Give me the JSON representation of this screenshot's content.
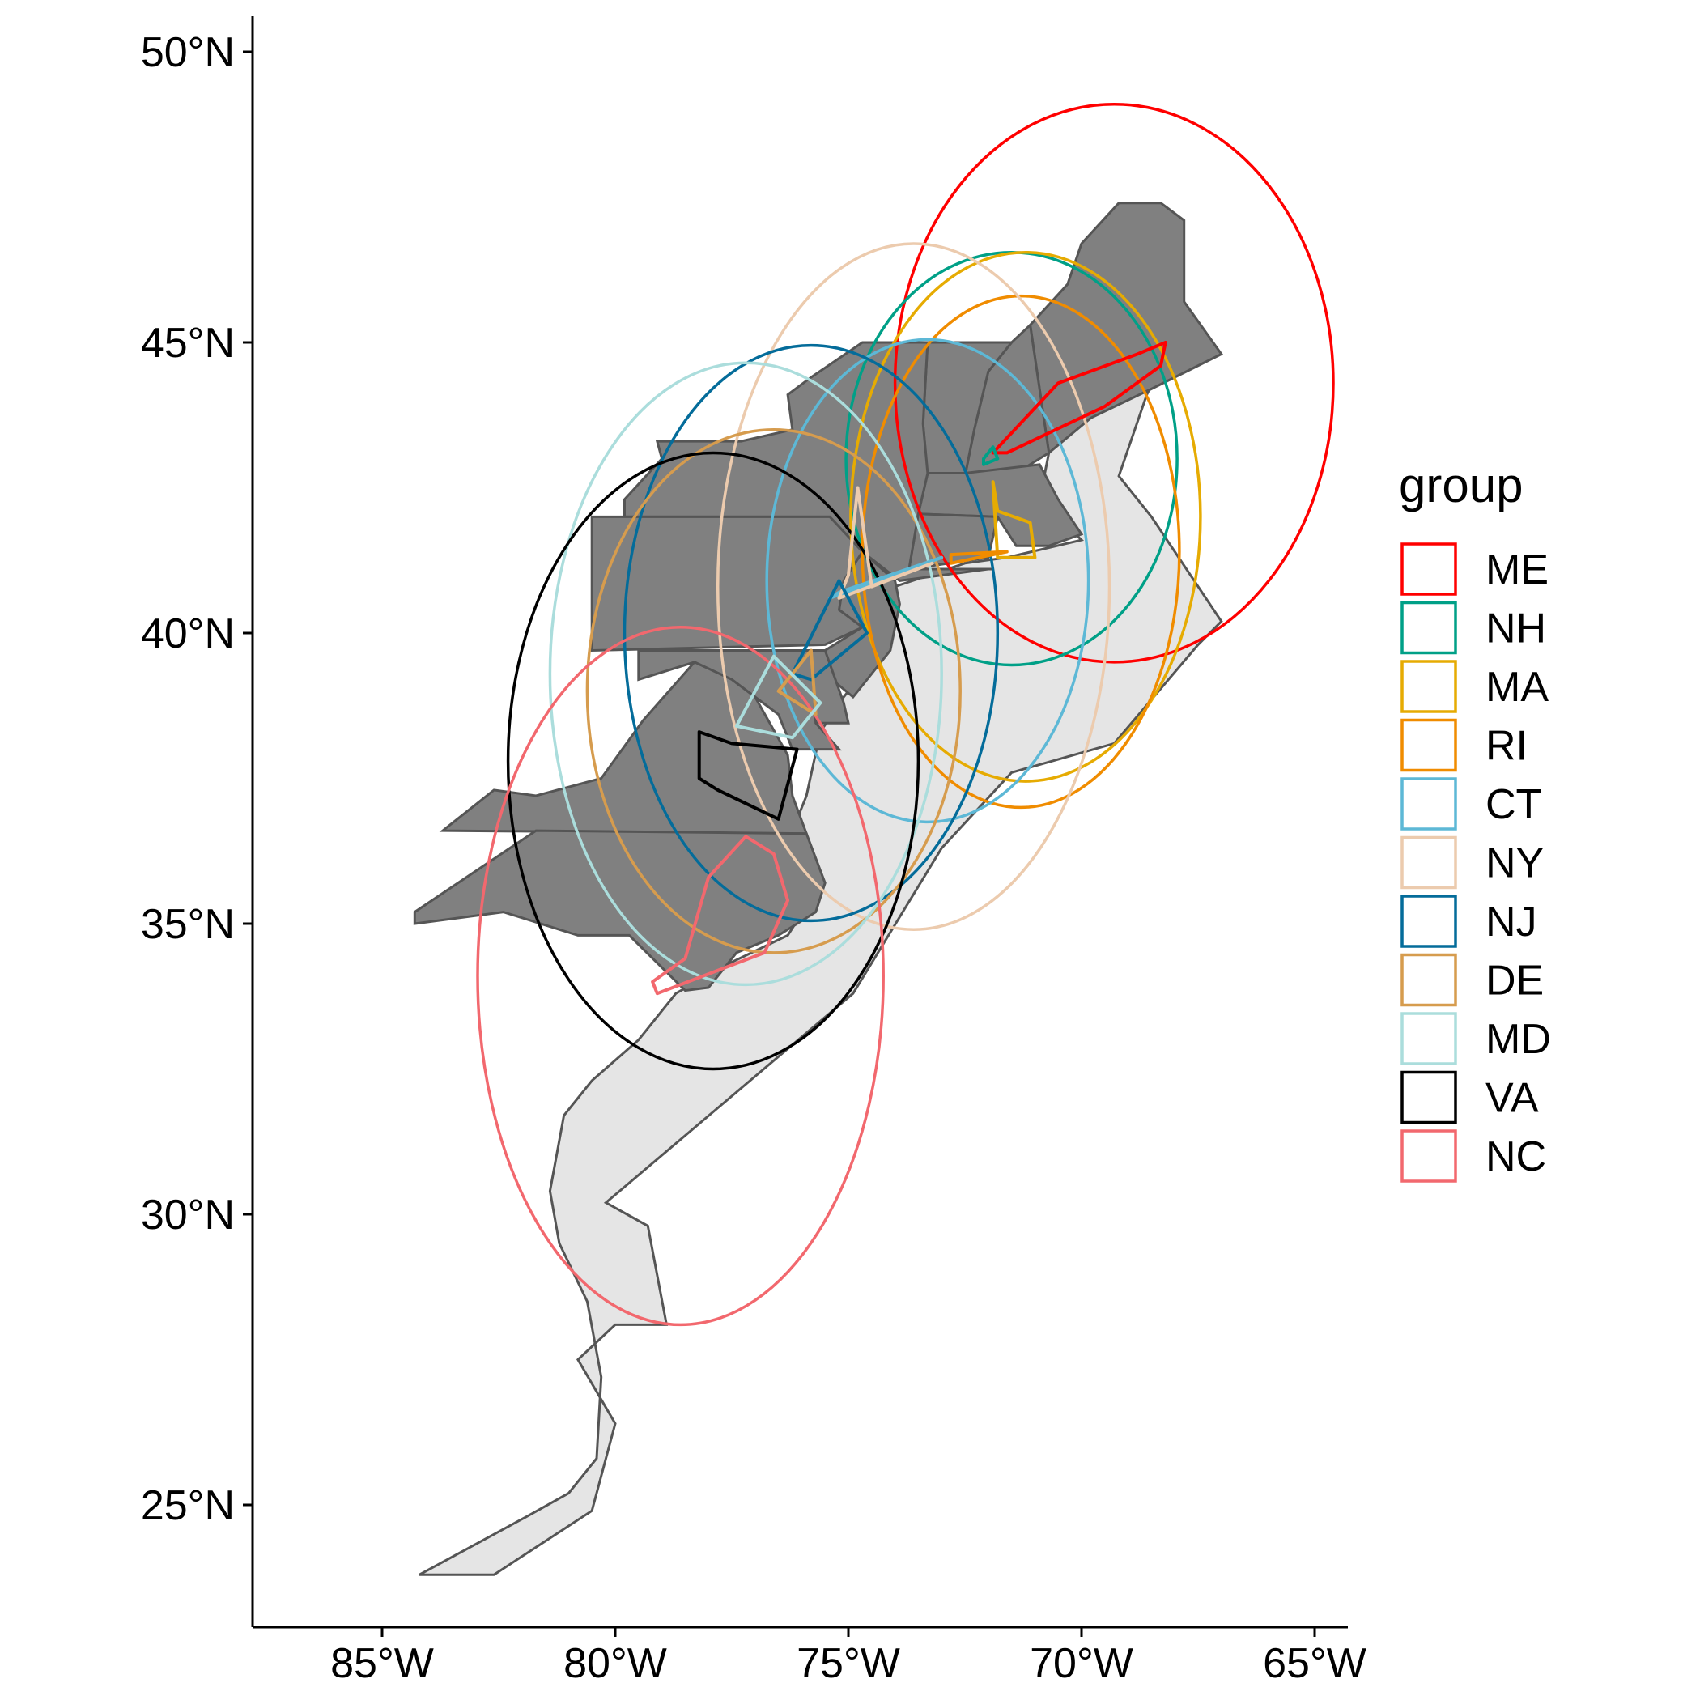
{
  "chart_data": {
    "type": "map",
    "y_ticks": [
      {
        "value": 50,
        "label": "50°N"
      },
      {
        "value": 45,
        "label": "45°N"
      },
      {
        "value": 40,
        "label": "40°N"
      },
      {
        "value": 35,
        "label": "35°N"
      },
      {
        "value": 30,
        "label": "30°N"
      },
      {
        "value": 25,
        "label": "25°N"
      }
    ],
    "x_ticks": [
      {
        "value": -85,
        "label": "85°W"
      },
      {
        "value": -80,
        "label": "80°W"
      },
      {
        "value": -75,
        "label": "75°W"
      },
      {
        "value": -70,
        "label": "70°W"
      },
      {
        "value": -65,
        "label": "65°W"
      }
    ],
    "xlim": [
      -86.3,
      -62.9
    ],
    "ylim": [
      22.8,
      50.5
    ],
    "land_color": "#808080",
    "ocean_region_color": "#e5e5e5",
    "legend": {
      "title": "group",
      "position": "right",
      "items": [
        {
          "label": "ME",
          "color": "#ff0000"
        },
        {
          "label": "NH",
          "color": "#00a087"
        },
        {
          "label": "MA",
          "color": "#e6ab02"
        },
        {
          "label": "RI",
          "color": "#f08c00"
        },
        {
          "label": "CT",
          "color": "#5db8d6"
        },
        {
          "label": "NY",
          "color": "#eccbae"
        },
        {
          "label": "NJ",
          "color": "#046c9a"
        },
        {
          "label": "DE",
          "color": "#d69c4e"
        },
        {
          "label": "MD",
          "color": "#abdddc"
        },
        {
          "label": "VA",
          "color": "#000000"
        },
        {
          "label": "NC",
          "color": "#f2686e"
        }
      ]
    },
    "buffers": [
      {
        "group": "ME",
        "center": [
          -69.3,
          44.3
        ],
        "rx": 4.7,
        "ry": 4.8
      },
      {
        "group": "NH",
        "center": [
          -71.5,
          43.0
        ],
        "rx": 3.55,
        "ry": 3.55
      },
      {
        "group": "MA",
        "center": [
          -71.2,
          42.0
        ],
        "rx": 3.75,
        "ry": 4.55
      },
      {
        "group": "RI",
        "center": [
          -71.3,
          41.4
        ],
        "rx": 3.4,
        "ry": 4.4
      },
      {
        "group": "CT",
        "center": [
          -73.3,
          40.9
        ],
        "rx": 3.45,
        "ry": 4.15
      },
      {
        "group": "NY",
        "center": [
          -73.6,
          40.8
        ],
        "rx": 4.2,
        "ry": 5.9
      },
      {
        "group": "NJ",
        "center": [
          -75.8,
          40.0
        ],
        "rx": 4.0,
        "ry": 4.95
      },
      {
        "group": "DE",
        "center": [
          -76.6,
          39.0
        ],
        "rx": 4.0,
        "ry": 4.5
      },
      {
        "group": "MD",
        "center": [
          -77.2,
          39.3
        ],
        "rx": 4.2,
        "ry": 5.35
      },
      {
        "group": "VA",
        "center": [
          -77.9,
          37.8
        ],
        "rx": 4.4,
        "ry": 5.3
      },
      {
        "group": "NC",
        "center": [
          -78.6,
          34.1
        ],
        "rx": 4.35,
        "ry": 6.0
      }
    ]
  }
}
